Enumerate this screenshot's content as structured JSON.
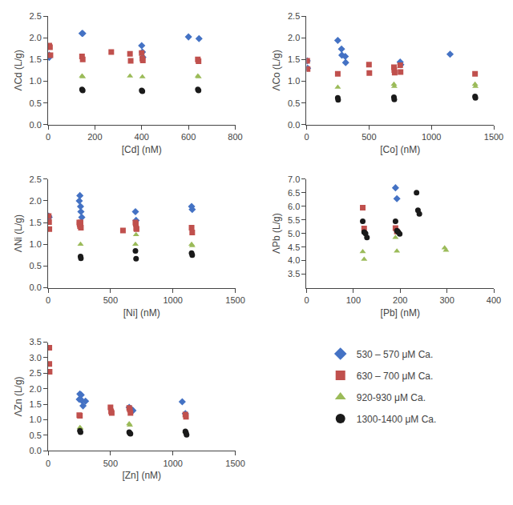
{
  "chart_data": [
    {
      "type": "scatter",
      "xlabel": "[Cd] (nM)",
      "ylabel": "ΛCd (L/g)",
      "grid": false,
      "legend": "lower right",
      "xlim": [
        0,
        800
      ],
      "ylim": [
        0.0,
        2.5
      ],
      "xticks": [
        0,
        200,
        400,
        600,
        800
      ],
      "yticks": [
        {
          "value": 0.0,
          "label": "0.0"
        },
        0.5,
        {
          "value": 1.0,
          "label": "1.0"
        },
        1.5,
        {
          "value": 2.0,
          "label": "2.0"
        },
        2.5
      ],
      "series": [
        {
          "name": "530 – 570 μM Ca.",
          "color": "#4472C4",
          "marker": "diamond",
          "x": [
            5,
            5,
            145,
            148,
            400,
            403,
            405,
            600,
            645
          ],
          "values": [
            1.6,
            1.55,
            2.1,
            2.1,
            1.82,
            1.67,
            1.55,
            2.02,
            1.98
          ]
        },
        {
          "name": "630 – 700 μM Ca.",
          "color": "#C0504D",
          "marker": "square",
          "x": [
            5,
            8,
            10,
            145,
            148,
            270,
            350,
            353,
            400,
            403,
            405,
            640,
            643
          ],
          "values": [
            1.82,
            1.78,
            1.6,
            1.57,
            1.5,
            1.67,
            1.63,
            1.47,
            1.65,
            1.52,
            1.48,
            1.5,
            1.46
          ]
        },
        {
          "name": "920-930 μM Ca.",
          "color": "#9BBB59",
          "marker": "triangle-up",
          "x": [
            145,
            148,
            350,
            403,
            640,
            643
          ],
          "values": [
            1.12,
            1.1,
            1.12,
            1.1,
            1.12,
            1.1
          ]
        },
        {
          "name": "1300-1400 μM Ca.",
          "color": "#1A1A1A",
          "marker": "circle",
          "x": [
            145,
            148,
            400,
            403,
            640,
            643
          ],
          "values": [
            0.81,
            0.79,
            0.79,
            0.77,
            0.81,
            0.79
          ]
        }
      ]
    },
    {
      "type": "scatter",
      "xlabel": "[Co] (nM)",
      "ylabel": "ΛCo (L/g)",
      "grid": false,
      "xlim": [
        0,
        1500
      ],
      "ylim": [
        0.0,
        2.5
      ],
      "xticks": [
        0,
        500,
        1000,
        1500
      ],
      "yticks": [
        {
          "value": 0.0,
          "label": "0.0"
        },
        0.5,
        {
          "value": 1.0,
          "label": "1.0"
        },
        1.5,
        {
          "value": 2.0,
          "label": "2.0"
        },
        2.5
      ],
      "series": [
        {
          "name": "530 – 570 μM Ca.",
          "color": "#4472C4",
          "marker": "diamond",
          "x": [
            5,
            8,
            250,
            280,
            283,
            310,
            313,
            750,
            755,
            1150
          ],
          "values": [
            1.47,
            1.3,
            1.94,
            1.74,
            1.6,
            1.57,
            1.43,
            1.44,
            1.38,
            1.62
          ]
        },
        {
          "name": "630 – 700 μM Ca.",
          "color": "#C0504D",
          "marker": "square",
          "x": [
            5,
            8,
            250,
            500,
            503,
            700,
            703,
            706,
            750,
            753,
            1350
          ],
          "values": [
            1.47,
            1.28,
            1.17,
            1.38,
            1.19,
            1.32,
            1.26,
            1.2,
            1.37,
            1.21,
            1.17
          ]
        },
        {
          "name": "920-930 μM Ca.",
          "color": "#9BBB59",
          "marker": "triangle-up",
          "x": [
            250,
            700,
            703,
            1350,
            1353
          ],
          "values": [
            0.86,
            0.93,
            0.88,
            0.93,
            0.88
          ]
        },
        {
          "name": "1300-1400 μM Ca.",
          "color": "#1A1A1A",
          "marker": "circle",
          "x": [
            250,
            253,
            700,
            703,
            1350,
            1353
          ],
          "values": [
            0.62,
            0.57,
            0.63,
            0.58,
            0.65,
            0.62
          ]
        }
      ]
    },
    {
      "type": "scatter",
      "xlabel": "[Ni] (nM)",
      "ylabel": "ΛNi (L/g)",
      "grid": false,
      "xlim": [
        0,
        1500
      ],
      "ylim": [
        0.0,
        2.5
      ],
      "xticks": [
        0,
        500,
        1000,
        1500
      ],
      "yticks": [
        {
          "value": 0.0,
          "label": "0.0"
        },
        0.5,
        {
          "value": 1.0,
          "label": "1.0"
        },
        1.5,
        {
          "value": 2.0,
          "label": "2.0"
        },
        2.5
      ],
      "series": [
        {
          "name": "530 – 570 μM Ca.",
          "color": "#4472C4",
          "marker": "diamond",
          "x": [
            5,
            8,
            250,
            255,
            260,
            263,
            270,
            700,
            705,
            1150,
            1155
          ],
          "values": [
            1.65,
            1.62,
            2.0,
            2.12,
            1.87,
            1.75,
            1.62,
            1.75,
            1.55,
            1.87,
            1.8
          ]
        },
        {
          "name": "630 – 700 μM Ca.",
          "color": "#C0504D",
          "marker": "square",
          "x": [
            5,
            8,
            10,
            250,
            253,
            256,
            260,
            263,
            600,
            700,
            703,
            706,
            709,
            1150,
            1155
          ],
          "values": [
            1.65,
            1.51,
            1.35,
            1.5,
            1.46,
            1.42,
            1.5,
            1.38,
            1.32,
            1.5,
            1.47,
            1.37,
            1.35,
            1.38,
            1.27
          ]
        },
        {
          "name": "920-930 μM Ca.",
          "color": "#9BBB59",
          "marker": "triangle-up",
          "x": [
            260,
            700,
            705,
            1150,
            1155
          ],
          "values": [
            1.0,
            1.0,
            1.22,
            1.0,
            0.97
          ]
        },
        {
          "name": "1300-1400 μM Ca.",
          "color": "#1A1A1A",
          "marker": "circle",
          "x": [
            260,
            263,
            700,
            705,
            1150,
            1155
          ],
          "values": [
            0.72,
            0.68,
            0.85,
            0.67,
            0.8,
            0.75
          ]
        }
      ]
    },
    {
      "type": "scatter",
      "xlabel": "[Pb] (nM)",
      "ylabel": "ΛPb (L/g)",
      "grid": false,
      "xlim": [
        0,
        400
      ],
      "ylim": [
        3.0,
        7.0
      ],
      "xticks": [
        0,
        100,
        200,
        300,
        400
      ],
      "yticks": [
        3.5,
        {
          "value": 4.0,
          "label": "4.0"
        },
        4.5,
        {
          "value": 5.0,
          "label": "5.0"
        },
        5.5,
        {
          "value": 6.0,
          "label": "6.0"
        },
        6.5,
        {
          "value": 7.0,
          "label": "7.0"
        }
      ],
      "series": [
        {
          "name": "530 – 570 μM Ca.",
          "color": "#4472C4",
          "marker": "diamond",
          "x": [
            190,
            193
          ],
          "values": [
            6.68,
            6.28
          ]
        },
        {
          "name": "630 – 700 μM Ca.",
          "color": "#C0504D",
          "marker": "square",
          "x": [
            120,
            123,
            190,
            193
          ],
          "values": [
            5.95,
            5.18,
            5.2,
            5.07
          ]
        },
        {
          "name": "920-930 μM Ca.",
          "color": "#9BBB59",
          "marker": "triangle-up",
          "x": [
            120,
            123,
            190,
            193,
            295,
            298
          ],
          "values": [
            4.33,
            4.05,
            4.85,
            4.35,
            4.47,
            4.38
          ]
        },
        {
          "name": "1300-1400 μM Ca.",
          "color": "#1A1A1A",
          "marker": "circle",
          "x": [
            120,
            123,
            126,
            129,
            190,
            193,
            196,
            199,
            235,
            238,
            241
          ],
          "values": [
            5.45,
            5.05,
            5.0,
            4.85,
            5.45,
            5.1,
            5.05,
            4.98,
            6.5,
            5.85,
            5.72
          ]
        }
      ]
    },
    {
      "type": "scatter",
      "xlabel": "[Zn] (nM)",
      "ylabel": "ΛZn (L/g)",
      "grid": false,
      "xlim": [
        0,
        1500
      ],
      "ylim": [
        0.0,
        3.5
      ],
      "xticks": [
        0,
        500,
        1000,
        1500
      ],
      "yticks": [
        {
          "value": 0.0,
          "label": "0.0"
        },
        0.5,
        {
          "value": 1.0,
          "label": "1.0"
        },
        1.5,
        {
          "value": 2.0,
          "label": "2.0"
        },
        2.5,
        {
          "value": 3.0,
          "label": "3.0"
        },
        3.5
      ],
      "series": [
        {
          "name": "530 – 570 μM Ca.",
          "color": "#4472C4",
          "marker": "diamond",
          "x": [
            250,
            255,
            265,
            270,
            280,
            300,
            650,
            660,
            680,
            1075,
            1100
          ],
          "values": [
            1.66,
            1.83,
            1.8,
            1.62,
            1.45,
            1.6,
            1.4,
            1.36,
            1.3,
            1.58,
            1.2
          ]
        },
        {
          "name": "630 – 700 μM Ca.",
          "color": "#C0504D",
          "marker": "square",
          "x": [
            10,
            250,
            255,
            500,
            505,
            510,
            650,
            655,
            660,
            1100,
            1105,
            10,
            12
          ],
          "values": [
            3.32,
            1.15,
            1.13,
            1.4,
            1.27,
            1.22,
            1.38,
            1.33,
            1.22,
            1.17,
            1.1,
            2.8,
            2.55
          ]
        },
        {
          "name": "920-930 μM Ca.",
          "color": "#9BBB59",
          "marker": "triangle-up",
          "x": [
            255,
            260,
            650,
            655,
            1100
          ],
          "values": [
            0.75,
            0.73,
            0.87,
            0.83,
            0.62
          ]
        },
        {
          "name": "1300-1400 μM Ca.",
          "color": "#1A1A1A",
          "marker": "circle",
          "x": [
            255,
            260,
            650,
            655,
            660,
            1100,
            1105,
            1110
          ],
          "values": [
            0.65,
            0.6,
            0.6,
            0.57,
            0.55,
            0.63,
            0.58,
            0.52
          ]
        }
      ]
    }
  ]
}
